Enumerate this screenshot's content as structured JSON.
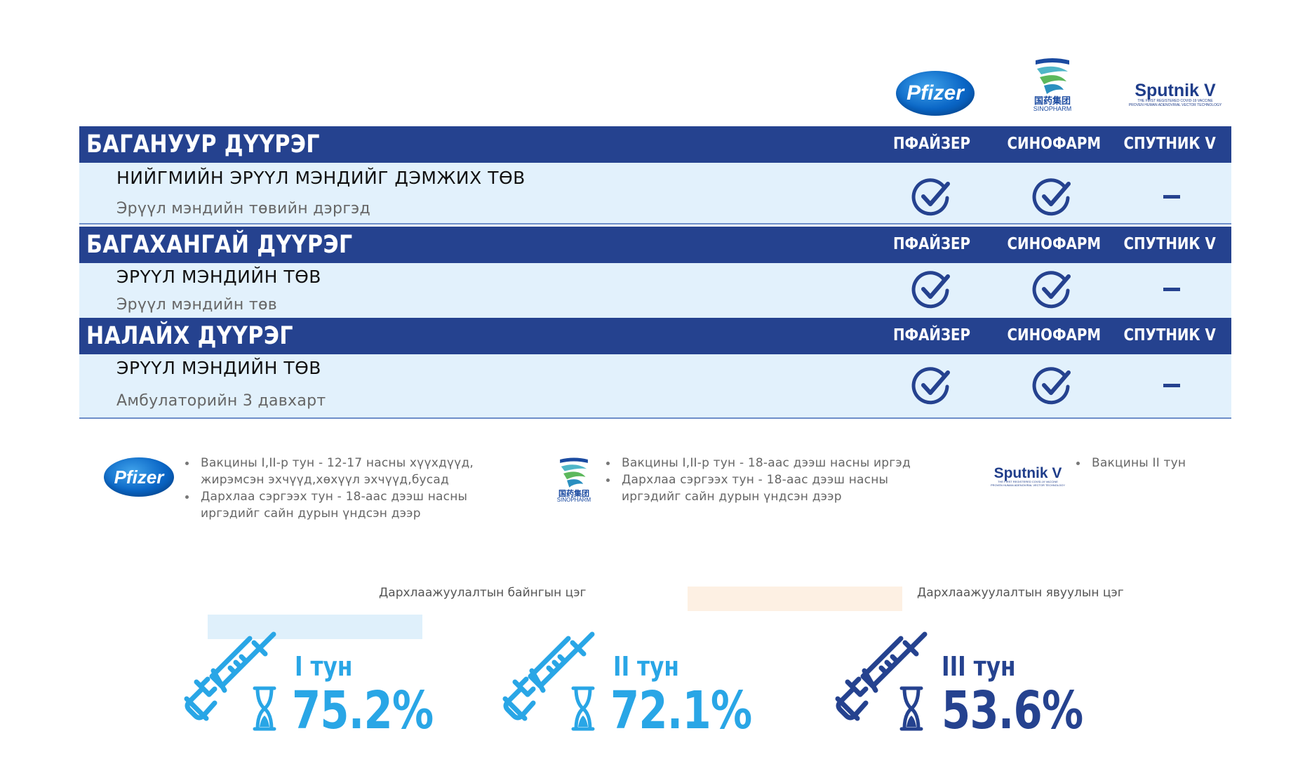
{
  "header_logos": {
    "pfizer": "Pfizer",
    "sinopharm_cn": "国药集团",
    "sinopharm_en": "SINOPHARM",
    "sputnik_name": "Sputnik V",
    "sputnik_sub1": "THE FIRST REGISTERED COVID-19 VACCINE",
    "sputnik_sub2": "PROVEN HUMAN ADENOVIRAL VECTOR TECHNOLOGY"
  },
  "columns": [
    "ПФАЙЗЕР",
    "СИНОФАРМ",
    "СПУТНИК V"
  ],
  "districts": [
    {
      "name": "БАГАНУУР ДҮҮРЭГ",
      "site": "НИЙГМИЙН ЭРҮҮЛ МЭНДИЙГ ДЭМЖИХ ТӨВ",
      "location": "Эрүүл мэндийн төвийн дэргэд",
      "availability": {
        "pfizer": "check",
        "sinopharm": "check",
        "sputnik": "dash"
      }
    },
    {
      "name": "БАГАХАНГАЙ ДҮҮРЭГ",
      "site": "ЭРҮҮЛ МЭНДИЙН ТӨВ",
      "location": "Эрүүл мэндийн төв",
      "availability": {
        "pfizer": "check",
        "sinopharm": "check",
        "sputnik": "dash"
      }
    },
    {
      "name": "НАЛАЙХ ДҮҮРЭГ",
      "site": "ЭРҮҮЛ МЭНДИЙН ТӨВ",
      "location": "Амбулаторийн 3 давхарт",
      "availability": {
        "pfizer": "check",
        "sinopharm": "check",
        "sputnik": "dash"
      }
    }
  ],
  "legend": {
    "pfizer": {
      "line1": "Вакцины I,II-р тун - 12-17 насны хүүхдүүд,",
      "line1b": "жирэмсэн эхчүүд,хөхүүл эхчүүд,бусад",
      "line2": "Дархлаа сэргээх тун - 18-аас дээш насны",
      "line2b": "иргэдийг сайн дурын үндсэн дээр"
    },
    "sinopharm": {
      "line1": "Вакцины I,II-р тун - 18-аас дээш насны иргэд",
      "line2": "Дархлаа сэргээх тун - 18-аас дээш насны",
      "line2b": "иргэдийг сайн дурын үндсэн дээр"
    },
    "sputnik": {
      "line1": "Вакцины II тун"
    }
  },
  "captions": {
    "fixed": "Дархлаажуулалтын байнгын цэг",
    "mobile": "Дархлаажуулалтын явуулын цэг"
  },
  "colors": {
    "navy": "#25428f",
    "row_bg": "#e2f1fc",
    "light_blue": "#29a6e6",
    "fixed_swatch": "#dff0fb",
    "mobile_swatch": "#fdf0e3"
  },
  "doses": [
    {
      "label": "I тун",
      "percent": "75.2%",
      "value": 75.2,
      "color": "#29a6e6"
    },
    {
      "label": "II тун",
      "percent": "72.1%",
      "value": 72.1,
      "color": "#29a6e6"
    },
    {
      "label": "III тун",
      "percent": "53.6%",
      "value": 53.6,
      "color": "#25428f"
    }
  ]
}
